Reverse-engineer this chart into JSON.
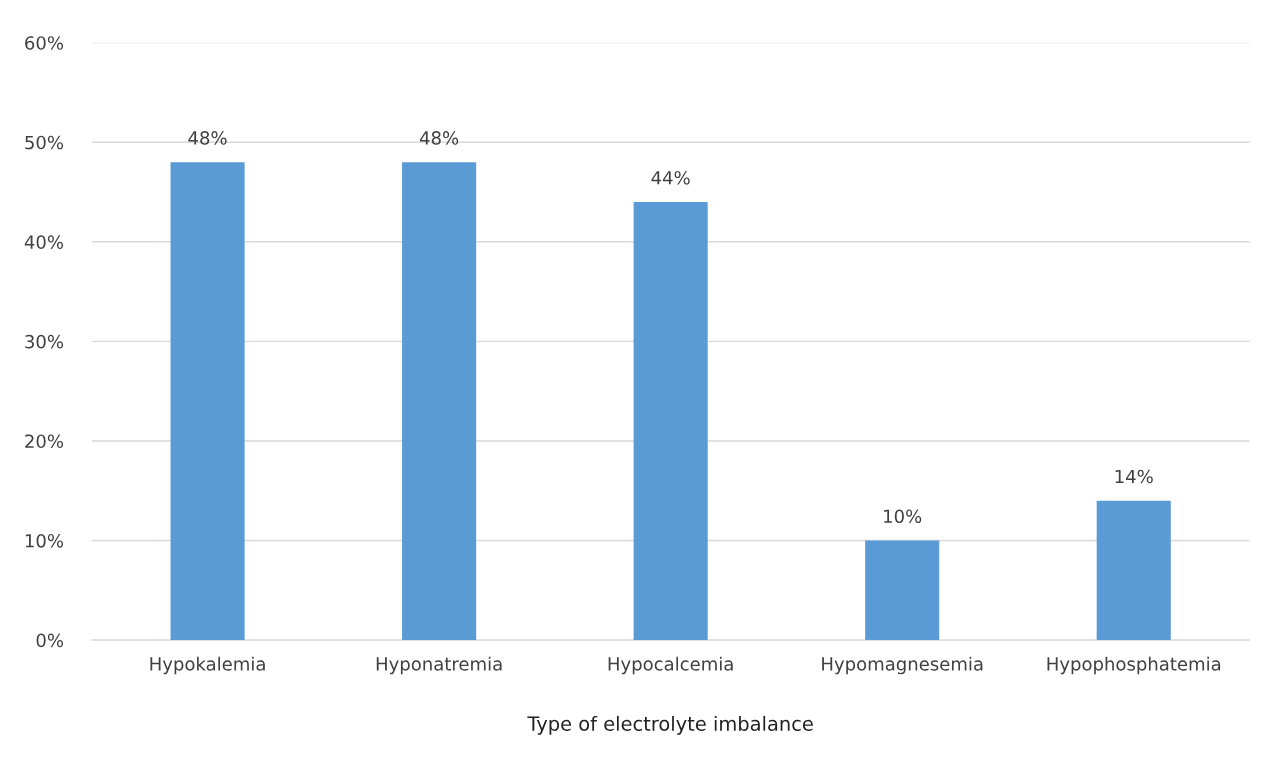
{
  "chart_data": {
    "type": "bar",
    "xlabel": "Type of electrolyte imbalance",
    "categories": [
      "Hypokalemia",
      "Hyponatremia",
      "Hypocalcemia",
      "Hypomagnesemia",
      "Hypophosphatemia"
    ],
    "values": [
      48,
      48,
      44,
      10,
      14
    ],
    "value_labels": [
      "48%",
      "48%",
      "44%",
      "10%",
      "14%"
    ],
    "color": "#5b9bd5",
    "ylim": [
      0,
      60
    ],
    "yticks": [
      {
        "value": 0,
        "label": "0%"
      },
      {
        "value": 10,
        "label": "10%"
      },
      {
        "value": 20,
        "label": "20%"
      },
      {
        "value": 30,
        "label": "30%"
      },
      {
        "value": 40,
        "label": "40%"
      },
      {
        "value": 50,
        "label": "50%"
      },
      {
        "value": 60,
        "label": "60%"
      }
    ],
    "grid": "y"
  }
}
